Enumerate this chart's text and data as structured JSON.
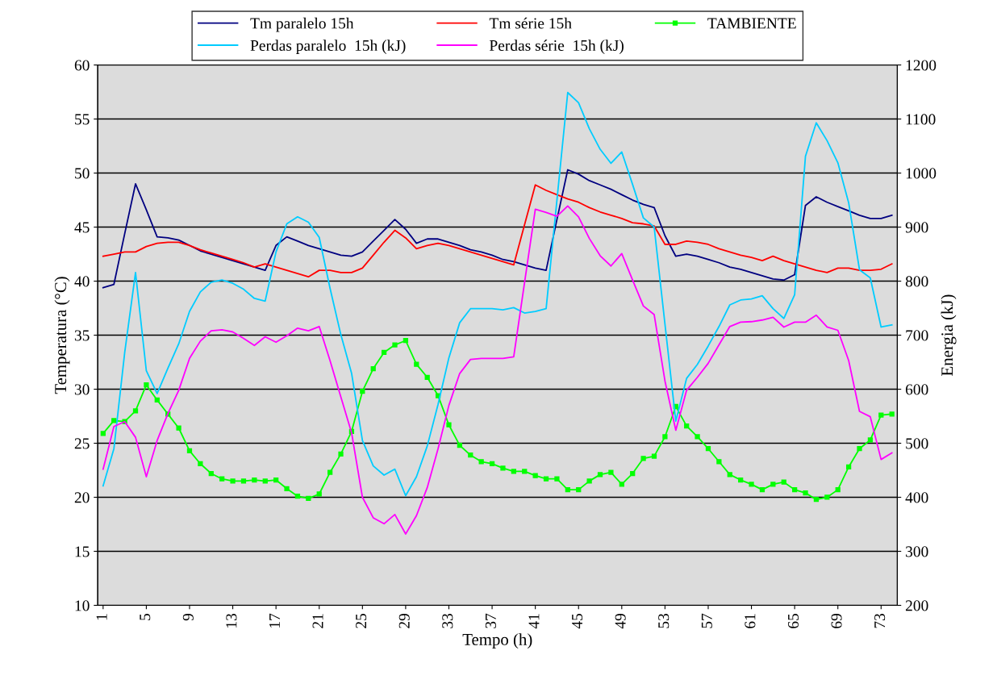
{
  "chart_data": {
    "type": "line",
    "xlabel": "Tempo (h)",
    "ylabel": "Temperatura (°C)",
    "y2label": "Energia (kJ)",
    "categories": [
      "1",
      null,
      null,
      null,
      "5",
      null,
      null,
      null,
      "9",
      null,
      null,
      null,
      "13",
      null,
      null,
      null,
      "17",
      null,
      null,
      null,
      "21",
      null,
      null,
      null,
      "25",
      null,
      null,
      null,
      "29",
      null,
      null,
      null,
      "33",
      null,
      null,
      null,
      "37",
      null,
      null,
      null,
      "41",
      null,
      null,
      null,
      "45",
      null,
      null,
      null,
      "49",
      null,
      null,
      null,
      "53",
      null,
      null,
      null,
      "57",
      null,
      null,
      null,
      "61",
      null,
      null,
      null,
      "65",
      null,
      null,
      null,
      "69",
      null,
      null,
      null,
      "73",
      null
    ],
    "ylim": [
      10,
      60
    ],
    "yticks": [
      10,
      15,
      20,
      25,
      30,
      35,
      40,
      45,
      50,
      55,
      60
    ],
    "y2lim": [
      200,
      1200
    ],
    "y2ticks": [
      200,
      300,
      400,
      500,
      600,
      700,
      800,
      900,
      1000,
      1100,
      1200
    ],
    "grid": "y",
    "legend": "top",
    "line_style": "solid",
    "series": [
      {
        "name": "Tm paralelo 15h",
        "color": "#000080",
        "values": [
          39.4,
          39.7,
          44.4,
          49.0,
          46.6,
          44.1,
          44.0,
          43.8,
          43.3,
          42.8,
          42.5,
          42.2,
          41.9,
          41.6,
          41.3,
          41.0,
          43.3,
          44.1,
          43.7,
          43.3,
          43.0,
          42.7,
          42.4,
          42.3,
          42.7,
          43.7,
          44.7,
          45.7,
          44.8,
          43.5,
          43.9,
          43.9,
          43.6,
          43.3,
          42.9,
          42.7,
          42.4,
          42.0,
          41.8,
          41.5,
          41.2,
          41.0,
          45.7,
          50.3,
          49.9,
          49.3,
          48.9,
          48.5,
          48.0,
          47.5,
          47.1,
          46.8,
          44.2,
          42.3,
          42.5,
          42.3,
          42.0,
          41.7,
          41.3,
          41.1,
          40.8,
          40.5,
          40.2,
          40.1,
          40.6,
          47.0,
          47.8,
          47.3,
          46.9,
          46.5,
          46.1,
          45.8,
          45.8,
          46.1
        ]
      },
      {
        "name": "Tm série 15h",
        "color": "#ff0000",
        "values": [
          42.3,
          42.5,
          42.7,
          42.7,
          43.2,
          43.5,
          43.6,
          43.6,
          43.3,
          42.9,
          42.6,
          42.3,
          42.0,
          41.7,
          41.3,
          41.6,
          41.3,
          41.0,
          40.7,
          40.4,
          41.0,
          41.0,
          40.8,
          40.8,
          41.2,
          42.4,
          43.6,
          44.7,
          44.0,
          43.0,
          43.3,
          43.5,
          43.3,
          43.0,
          42.7,
          42.4,
          42.1,
          41.8,
          41.5,
          45.2,
          48.9,
          48.4,
          48.0,
          47.6,
          47.3,
          46.8,
          46.4,
          46.1,
          45.8,
          45.4,
          45.3,
          45.1,
          43.4,
          43.4,
          43.7,
          43.6,
          43.4,
          43.0,
          42.7,
          42.4,
          42.2,
          41.9,
          42.3,
          41.9,
          41.6,
          41.3,
          41.0,
          40.8,
          41.2,
          41.2,
          41.0,
          41.0,
          41.1,
          41.6
        ]
      },
      {
        "name": "TAMBIENTE",
        "color": "#00ff00",
        "marker": "square",
        "values": [
          25.9,
          27.1,
          27.0,
          28.0,
          30.4,
          29.0,
          27.7,
          26.4,
          24.3,
          23.1,
          22.2,
          21.7,
          21.5,
          21.5,
          21.6,
          21.5,
          21.6,
          20.8,
          20.1,
          19.9,
          20.3,
          22.3,
          24.0,
          26.1,
          29.8,
          31.9,
          33.4,
          34.1,
          34.5,
          32.3,
          31.1,
          29.4,
          26.7,
          24.8,
          23.9,
          23.3,
          23.1,
          22.7,
          22.4,
          22.4,
          22.0,
          21.7,
          21.7,
          20.7,
          20.7,
          21.5,
          22.1,
          22.3,
          21.2,
          22.2,
          23.6,
          23.8,
          25.6,
          28.4,
          26.6,
          25.6,
          24.5,
          23.3,
          22.1,
          21.6,
          21.2,
          20.7,
          21.2,
          21.4,
          20.7,
          20.4,
          19.8,
          20.0,
          20.7,
          22.8,
          24.5,
          25.3,
          27.6,
          27.7
        ]
      },
      {
        "name": "Perdas paralelo  15h (kJ)",
        "color": "#00ccff",
        "axis": "y2",
        "values": [
          421,
          490,
          668,
          816,
          634,
          592,
          639,
          684,
          744,
          780,
          798,
          802,
          796,
          785,
          768,
          763,
          854,
          906,
          919,
          909,
          881,
          787,
          701,
          629,
          505,
          458,
          441,
          452,
          403,
          438,
          495,
          572,
          658,
          723,
          749,
          749,
          749,
          747,
          751,
          741,
          744,
          749,
          950,
          1149,
          1130,
          1082,
          1044,
          1018,
          1039,
          979,
          917,
          900,
          720,
          541,
          620,
          646,
          680,
          716,
          756,
          765,
          767,
          773,
          749,
          731,
          775,
          1031,
          1093,
          1060,
          1019,
          945,
          821,
          806,
          715,
          719
        ]
      },
      {
        "name": "Perdas série  15h (kJ)",
        "color": "#ff00ff",
        "axis": "y2",
        "values": [
          452,
          531,
          540,
          511,
          438,
          505,
          555,
          598,
          657,
          689,
          708,
          710,
          706,
          694,
          681,
          697,
          687,
          699,
          713,
          708,
          716,
          653,
          586,
          519,
          400,
          362,
          351,
          368,
          332,
          366,
          418,
          490,
          570,
          629,
          655,
          657,
          657,
          657,
          660,
          797,
          933,
          927,
          920,
          939,
          919,
          879,
          847,
          828,
          851,
          802,
          754,
          738,
          615,
          524,
          598,
          622,
          648,
          682,
          716,
          724,
          725,
          728,
          733,
          715,
          724,
          724,
          737,
          715,
          709,
          653,
          559,
          549,
          470,
          482
        ]
      }
    ]
  }
}
